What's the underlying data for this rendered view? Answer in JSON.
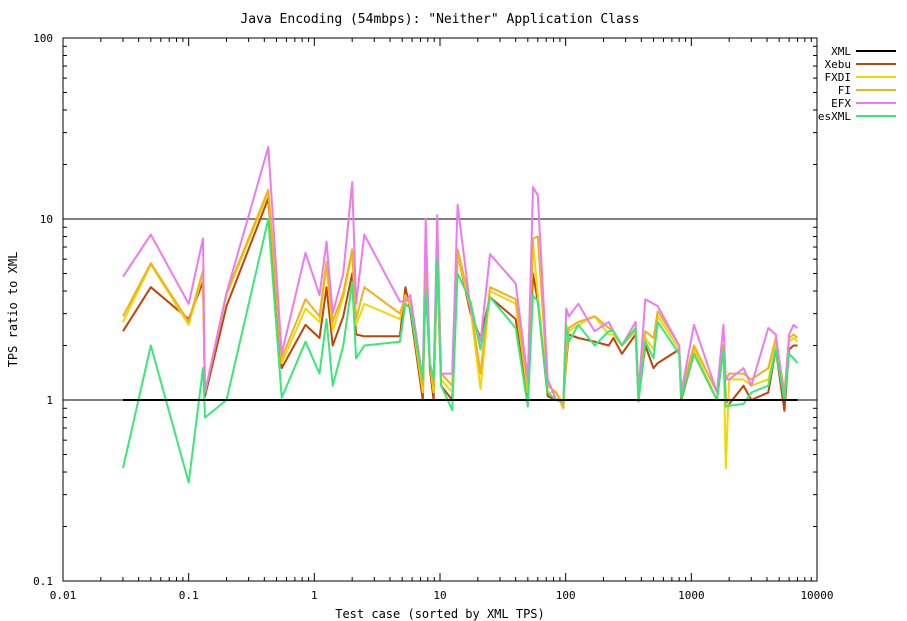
{
  "chart_data": {
    "type": "line",
    "title": "Java Encoding (54mbps): \"Neither\" Application Class",
    "xlabel": "Test case (sorted by XML TPS)",
    "ylabel": "TPS ratio to XML",
    "x_scale": "log",
    "y_scale": "log",
    "xlim": [
      0.01,
      10000
    ],
    "ylim": [
      0.1,
      100
    ],
    "x_ticks": [
      0.01,
      0.1,
      1,
      10,
      100,
      1000,
      10000
    ],
    "x_tick_labels": [
      "0.01",
      "0.1",
      "1",
      "10",
      "100",
      "1000",
      "10000"
    ],
    "y_ticks": [
      0.1,
      1,
      10,
      100
    ],
    "y_tick_labels": [
      "0.1",
      "1",
      "10",
      "100"
    ],
    "grid": "horizontal lines at 1 and 10",
    "legend_position": "top-right",
    "x": [
      0.03,
      0.05,
      0.1,
      0.13,
      0.135,
      0.2,
      0.43,
      0.55,
      0.85,
      1.1,
      1.25,
      1.4,
      1.7,
      2.0,
      2.15,
      2.5,
      4.8,
      5.3,
      5.8,
      7.3,
      7.7,
      8.3,
      8.9,
      9.5,
      10.2,
      12.5,
      13.8,
      17.5,
      21.0,
      25.0,
      40.0,
      50.0,
      55.0,
      60.0,
      72.0,
      84.0,
      96.0,
      101.0,
      106.0,
      126.0,
      170.0,
      220.0,
      240.0,
      280.0,
      360.0,
      380.0,
      430.0,
      500.0,
      540.0,
      800.0,
      830.0,
      1050.0,
      1600.0,
      1800.0,
      1880.0,
      2000.0,
      2600.0,
      3000.0,
      4100.0,
      4700.0,
      5500.0,
      6000.0,
      6500.0,
      7000.0
    ],
    "series": [
      {
        "name": "XML",
        "color": "#000000",
        "values": [
          1,
          1,
          1,
          1,
          1,
          1,
          1,
          1,
          1,
          1,
          1,
          1,
          1,
          1,
          1,
          1,
          1,
          1,
          1,
          1,
          1,
          1,
          1,
          1,
          1,
          1,
          1,
          1,
          1,
          1,
          1,
          1,
          1,
          1,
          1,
          1,
          1,
          1,
          1,
          1,
          1,
          1,
          1,
          1,
          1,
          1,
          1,
          1,
          1,
          1,
          1,
          1,
          1,
          1,
          1,
          1,
          1,
          1,
          1,
          1,
          1,
          1,
          1,
          1
        ]
      },
      {
        "name": "Xebu",
        "color": "#c0430a",
        "values": [
          2.4,
          4.2,
          2.8,
          4.5,
          1.05,
          3.3,
          13,
          1.5,
          2.6,
          2.2,
          4.2,
          2.0,
          2.9,
          5.0,
          2.3,
          2.25,
          2.25,
          4.2,
          3.1,
          1.0,
          5.5,
          1.5,
          1.0,
          5.7,
          1.2,
          1.0,
          6.5,
          3.0,
          2.2,
          3.7,
          2.8,
          1.0,
          5.0,
          3.5,
          1.05,
          1.0,
          1.0,
          1.6,
          2.3,
          2.2,
          2.1,
          2.0,
          2.2,
          1.8,
          2.3,
          1.0,
          2.0,
          1.5,
          1.6,
          1.9,
          1.0,
          1.8,
          1.0,
          2.0,
          1.0,
          0.95,
          1.2,
          1.0,
          1.1,
          1.9,
          0.87,
          1.9,
          2.0,
          2.0
        ]
      },
      {
        "name": "FXDI",
        "color": "#f2d800",
        "values": [
          2.7,
          5.6,
          2.6,
          5.0,
          1.1,
          3.8,
          14,
          1.6,
          3.2,
          2.7,
          5.5,
          2.4,
          3.7,
          6.5,
          2.6,
          3.4,
          2.8,
          3.8,
          3.3,
          1.1,
          6.5,
          1.6,
          1.1,
          5.5,
          1.3,
          1.1,
          6.5,
          3.2,
          1.15,
          4.0,
          3.4,
          1.1,
          7.5,
          3.8,
          1.1,
          1.1,
          0.95,
          1.7,
          2.4,
          2.6,
          2.9,
          2.3,
          2.3,
          2.0,
          2.4,
          1.0,
          2.2,
          1.9,
          2.9,
          1.9,
          1.1,
          1.9,
          1.0,
          2.0,
          0.42,
          1.3,
          1.3,
          1.2,
          1.3,
          2.0,
          1.0,
          2.1,
          2.2,
          2.1
        ]
      },
      {
        "name": "FI",
        "color": "#f0b020",
        "values": [
          2.9,
          5.7,
          2.7,
          5.2,
          1.1,
          3.9,
          14.5,
          1.7,
          3.6,
          2.9,
          5.8,
          2.7,
          3.9,
          6.8,
          2.8,
          4.2,
          3.0,
          3.7,
          3.5,
          1.2,
          7.0,
          1.6,
          1.2,
          5.3,
          1.4,
          1.2,
          6.8,
          3.4,
          1.4,
          4.2,
          3.6,
          1.2,
          7.8,
          8.0,
          1.2,
          1.1,
          0.9,
          1.8,
          2.5,
          2.7,
          2.9,
          2.5,
          2.4,
          2.0,
          2.5,
          1.1,
          2.4,
          2.2,
          3.1,
          2.0,
          1.1,
          2.0,
          1.1,
          2.0,
          1.3,
          1.4,
          1.4,
          1.3,
          1.5,
          2.2,
          1.1,
          2.2,
          2.3,
          2.2
        ]
      },
      {
        "name": "EFX",
        "color": "#ef7aef",
        "values": [
          4.8,
          8.2,
          3.4,
          7.8,
          1.1,
          3.9,
          25,
          1.8,
          6.5,
          3.8,
          7.5,
          3.0,
          5.0,
          16,
          3.4,
          8.2,
          3.5,
          3.5,
          3.8,
          1.3,
          10,
          1.6,
          1.3,
          10.5,
          1.4,
          1.4,
          12,
          3.2,
          2.1,
          6.4,
          4.4,
          1.3,
          15,
          13.5,
          1.3,
          1.0,
          1.0,
          3.2,
          2.9,
          3.4,
          2.4,
          2.7,
          2.4,
          2.0,
          2.7,
          1.1,
          3.6,
          3.4,
          3.3,
          2.0,
          1.1,
          2.6,
          1.1,
          2.6,
          1.3,
          1.3,
          1.5,
          1.2,
          2.5,
          2.3,
          1.0,
          2.3,
          2.6,
          2.5
        ]
      },
      {
        "name": "esXML",
        "color": "#3ae878",
        "values": [
          0.42,
          2.0,
          0.35,
          1.5,
          0.8,
          1.0,
          10,
          1.03,
          2.1,
          1.4,
          2.8,
          1.2,
          2.0,
          4.5,
          1.7,
          2.0,
          2.1,
          3.4,
          3.2,
          1.3,
          4.0,
          1.6,
          1.3,
          6.0,
          1.2,
          0.88,
          5.0,
          3.5,
          1.9,
          3.7,
          2.5,
          0.92,
          3.8,
          3.5,
          1.1,
          1.0,
          0.98,
          2.6,
          2.1,
          2.6,
          2.0,
          2.4,
          2.4,
          2.0,
          2.5,
          0.98,
          2.1,
          1.7,
          2.7,
          1.8,
          1.03,
          1.8,
          1.0,
          1.9,
          0.92,
          0.93,
          0.95,
          1.1,
          1.2,
          1.9,
          1.0,
          1.8,
          1.7,
          1.6
        ]
      }
    ]
  }
}
